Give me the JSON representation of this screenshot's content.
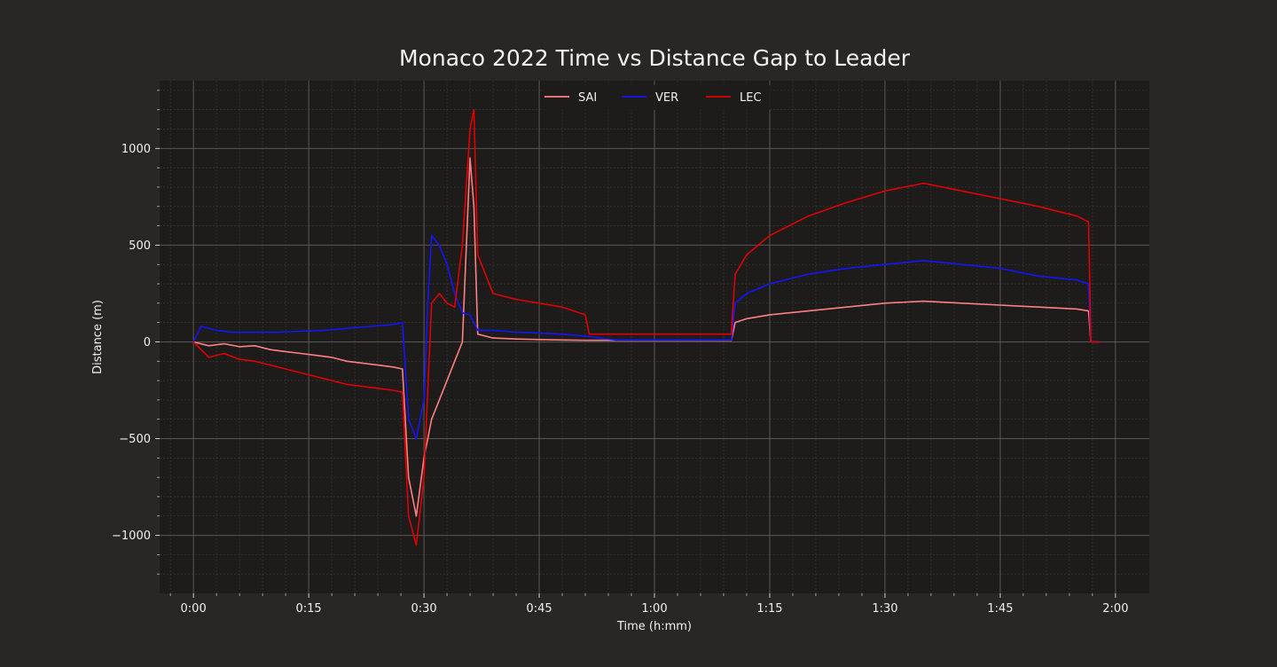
{
  "chart_data": {
    "type": "line",
    "title": "Monaco 2022 Time vs Distance Gap to Leader",
    "xlabel": "Time (h:mm)",
    "ylabel": "Distance (m)",
    "xlim_minutes": [
      -4.4,
      124.4
    ],
    "ylim": [
      -1300,
      1350
    ],
    "x_ticks": [
      {
        "value": 0,
        "label": "0:00"
      },
      {
        "value": 15,
        "label": "0:15"
      },
      {
        "value": 30,
        "label": "0:30"
      },
      {
        "value": 45,
        "label": "0:45"
      },
      {
        "value": 60,
        "label": "1:00"
      },
      {
        "value": 75,
        "label": "1:15"
      },
      {
        "value": 90,
        "label": "1:30"
      },
      {
        "value": 105,
        "label": "1:45"
      },
      {
        "value": 120,
        "label": "2:00"
      }
    ],
    "y_ticks": [
      {
        "value": 1000,
        "label": "1000"
      },
      {
        "value": 500,
        "label": "500"
      },
      {
        "value": 0,
        "label": "0"
      },
      {
        "value": -500,
        "label": "−500"
      },
      {
        "value": -1000,
        "label": "−1000"
      }
    ],
    "grid": true,
    "legend_position": "top-center",
    "colors": {
      "background": "#292625",
      "plot_background": "#1e1c1b",
      "grid_major": "#5a5856",
      "grid_minor": "#3e3c3b",
      "text": "#f2f2f2"
    },
    "series": [
      {
        "name": "SAI",
        "color": "#ff8080",
        "points": [
          [
            0,
            0
          ],
          [
            2,
            -20
          ],
          [
            4,
            -10
          ],
          [
            6,
            -25
          ],
          [
            8,
            -20
          ],
          [
            10,
            -40
          ],
          [
            12,
            -50
          ],
          [
            14,
            -60
          ],
          [
            16,
            -70
          ],
          [
            18,
            -80
          ],
          [
            20,
            -100
          ],
          [
            22,
            -110
          ],
          [
            24,
            -120
          ],
          [
            26,
            -130
          ],
          [
            27.2,
            -140
          ],
          [
            28,
            -700
          ],
          [
            29,
            -900
          ],
          [
            30,
            -600
          ],
          [
            31,
            -400
          ],
          [
            32,
            -300
          ],
          [
            33,
            -200
          ],
          [
            34,
            -100
          ],
          [
            35,
            0
          ],
          [
            36,
            950
          ],
          [
            36.5,
            700
          ],
          [
            37,
            40
          ],
          [
            39,
            20
          ],
          [
            42,
            15
          ],
          [
            45,
            12
          ],
          [
            48,
            10
          ],
          [
            51,
            8
          ],
          [
            55,
            8
          ],
          [
            60,
            8
          ],
          [
            65,
            8
          ],
          [
            70,
            8
          ],
          [
            70.5,
            100
          ],
          [
            72,
            120
          ],
          [
            75,
            140
          ],
          [
            80,
            160
          ],
          [
            85,
            180
          ],
          [
            90,
            200
          ],
          [
            95,
            210
          ],
          [
            100,
            200
          ],
          [
            105,
            190
          ],
          [
            110,
            180
          ],
          [
            115,
            170
          ],
          [
            116.5,
            160
          ],
          [
            116.8,
            0
          ],
          [
            118,
            0
          ]
        ]
      },
      {
        "name": "VER",
        "color": "#1414ff",
        "points": [
          [
            0,
            0
          ],
          [
            1,
            80
          ],
          [
            3,
            60
          ],
          [
            5,
            50
          ],
          [
            8,
            50
          ],
          [
            11,
            50
          ],
          [
            14,
            55
          ],
          [
            17,
            60
          ],
          [
            20,
            70
          ],
          [
            23,
            80
          ],
          [
            26,
            90
          ],
          [
            27.2,
            100
          ],
          [
            28,
            -400
          ],
          [
            29,
            -500
          ],
          [
            30,
            -300
          ],
          [
            30.5,
            200
          ],
          [
            31,
            550
          ],
          [
            32,
            500
          ],
          [
            33,
            400
          ],
          [
            34,
            250
          ],
          [
            35,
            150
          ],
          [
            36,
            140
          ],
          [
            37,
            60
          ],
          [
            39,
            60
          ],
          [
            42,
            50
          ],
          [
            45,
            45
          ],
          [
            48,
            40
          ],
          [
            51,
            30
          ],
          [
            55,
            10
          ],
          [
            60,
            10
          ],
          [
            65,
            10
          ],
          [
            70,
            10
          ],
          [
            70.5,
            200
          ],
          [
            72,
            250
          ],
          [
            75,
            300
          ],
          [
            80,
            350
          ],
          [
            85,
            380
          ],
          [
            90,
            400
          ],
          [
            95,
            420
          ],
          [
            100,
            400
          ],
          [
            105,
            380
          ],
          [
            110,
            340
          ],
          [
            115,
            320
          ],
          [
            116.5,
            300
          ],
          [
            116.8,
            0
          ],
          [
            118,
            0
          ]
        ]
      },
      {
        "name": "LEC",
        "color": "#e00000",
        "points": [
          [
            0,
            0
          ],
          [
            2,
            -80
          ],
          [
            4,
            -60
          ],
          [
            6,
            -90
          ],
          [
            8,
            -100
          ],
          [
            10,
            -120
          ],
          [
            12,
            -140
          ],
          [
            14,
            -160
          ],
          [
            16,
            -180
          ],
          [
            18,
            -200
          ],
          [
            20,
            -220
          ],
          [
            22,
            -230
          ],
          [
            24,
            -240
          ],
          [
            26,
            -250
          ],
          [
            27.2,
            -260
          ],
          [
            28,
            -900
          ],
          [
            29,
            -1050
          ],
          [
            30,
            -700
          ],
          [
            31,
            200
          ],
          [
            32,
            250
          ],
          [
            33,
            200
          ],
          [
            34,
            180
          ],
          [
            35,
            500
          ],
          [
            36,
            1100
          ],
          [
            36.5,
            1200
          ],
          [
            37,
            450
          ],
          [
            39,
            250
          ],
          [
            42,
            220
          ],
          [
            45,
            200
          ],
          [
            48,
            180
          ],
          [
            51,
            140
          ],
          [
            51.5,
            40
          ],
          [
            55,
            40
          ],
          [
            60,
            40
          ],
          [
            65,
            40
          ],
          [
            70,
            40
          ],
          [
            70.5,
            350
          ],
          [
            72,
            450
          ],
          [
            75,
            550
          ],
          [
            80,
            650
          ],
          [
            85,
            720
          ],
          [
            90,
            780
          ],
          [
            95,
            820
          ],
          [
            100,
            780
          ],
          [
            105,
            740
          ],
          [
            110,
            700
          ],
          [
            115,
            650
          ],
          [
            116.5,
            620
          ],
          [
            116.8,
            0
          ],
          [
            118,
            0
          ]
        ]
      }
    ]
  }
}
